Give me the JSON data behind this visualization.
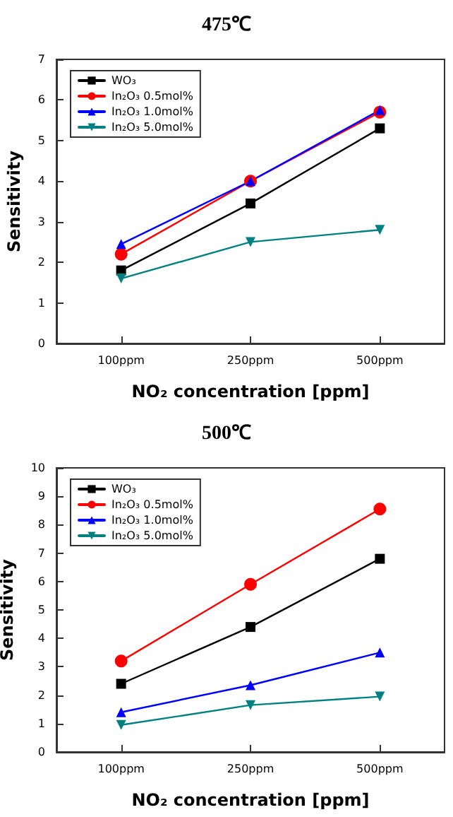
{
  "chart_data": [
    {
      "type": "line",
      "title": "475℃",
      "xlabel": "NO₂ concentration [ppm]",
      "ylabel": "Sensitivity",
      "categories": [
        "100ppm",
        "250ppm",
        "500ppm"
      ],
      "ylim": [
        0,
        7
      ],
      "yticks": [
        0,
        1,
        2,
        3,
        4,
        5,
        6,
        7
      ],
      "grid": false,
      "legend": "top left",
      "line_style": "solid",
      "series": [
        {
          "name": "WO₃",
          "color": "#000000",
          "marker": "square",
          "values": [
            1.8,
            3.45,
            5.3
          ]
        },
        {
          "name": "In₂O₃ 0.5mol%",
          "color": "#ff0000",
          "marker": "circle",
          "values": [
            2.2,
            4.0,
            5.7
          ]
        },
        {
          "name": "In₂O₃ 1.0mol%",
          "color": "#0000ff",
          "marker": "triangle",
          "values": [
            2.45,
            4.0,
            5.75
          ]
        },
        {
          "name": "In₂O₃ 5.0mol%",
          "color": "#008080",
          "marker": "triangle-down",
          "values": [
            1.6,
            2.5,
            2.8
          ]
        }
      ]
    },
    {
      "type": "line",
      "title": "500℃",
      "xlabel": "NO₂ concentration [ppm]",
      "ylabel": "Sensitivity",
      "categories": [
        "100ppm",
        "250ppm",
        "500ppm"
      ],
      "ylim": [
        0,
        10
      ],
      "yticks": [
        0,
        1,
        2,
        3,
        4,
        5,
        6,
        7,
        8,
        9,
        10
      ],
      "grid": false,
      "legend": "top left",
      "line_style": "solid",
      "series": [
        {
          "name": "WO₃",
          "color": "#000000",
          "marker": "square",
          "values": [
            2.4,
            4.4,
            6.8
          ]
        },
        {
          "name": "In₂O₃ 0.5mol%",
          "color": "#ff0000",
          "marker": "circle",
          "values": [
            3.2,
            5.9,
            8.55
          ]
        },
        {
          "name": "In₂O₃ 1.0mol%",
          "color": "#0000ff",
          "marker": "triangle",
          "values": [
            1.4,
            2.35,
            3.5
          ]
        },
        {
          "name": "In₂O₃ 5.0mol%",
          "color": "#008080",
          "marker": "triangle-down",
          "values": [
            0.95,
            1.65,
            1.95
          ]
        }
      ]
    }
  ]
}
